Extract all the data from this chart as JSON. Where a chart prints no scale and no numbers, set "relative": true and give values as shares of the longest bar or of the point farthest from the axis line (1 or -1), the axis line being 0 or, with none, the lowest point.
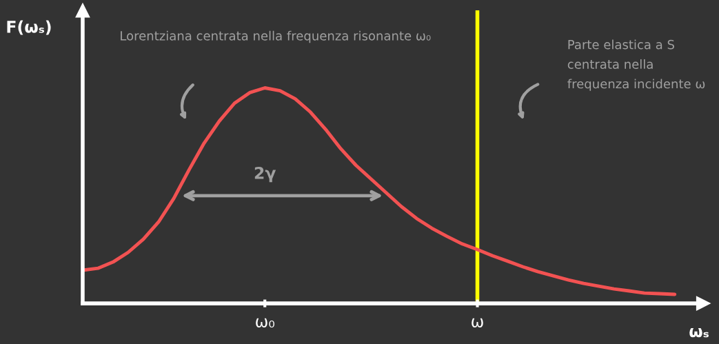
{
  "chart_data": {
    "type": "line",
    "relative": true,
    "ylabel": "F(ωₛ)",
    "xlabel": "ωₛ",
    "categories": [
      null,
      null,
      null,
      null,
      null,
      null,
      null,
      null,
      null,
      null,
      null,
      null,
      "ω₀",
      null,
      null,
      null,
      null,
      null,
      null,
      null,
      null,
      null,
      null,
      null,
      null,
      null,
      "ω",
      null,
      null,
      null,
      null,
      null,
      null,
      null,
      null,
      null,
      null,
      null,
      null,
      null
    ],
    "series": [
      {
        "color": "#f25252",
        "values": [
          0.154,
          0.163,
          0.192,
          0.237,
          0.298,
          0.378,
          0.487,
          0.619,
          0.744,
          0.846,
          0.929,
          0.978,
          1,
          0.987,
          0.949,
          0.888,
          0.808,
          0.718,
          0.641,
          0.577,
          0.513,
          0.449,
          0.394,
          0.349,
          0.311,
          0.276,
          0.25,
          0.221,
          0.196,
          0.17,
          0.147,
          0.128,
          0.109,
          0.093,
          0.08,
          0.067,
          0.058,
          0.048,
          0.045,
          0.042
        ]
      }
    ],
    "ref_lines": [
      {
        "axis": "x",
        "value": "ω",
        "color": "#ffff00"
      }
    ],
    "annotations": [
      "Lorentziana centrata nella frequenza risonante ω₀",
      "Parte elastica a S centrata nella frequenza incidente ω",
      "2γ"
    ],
    "grid": false,
    "legend": false,
    "marker": "none",
    "line_style": "solid"
  }
}
